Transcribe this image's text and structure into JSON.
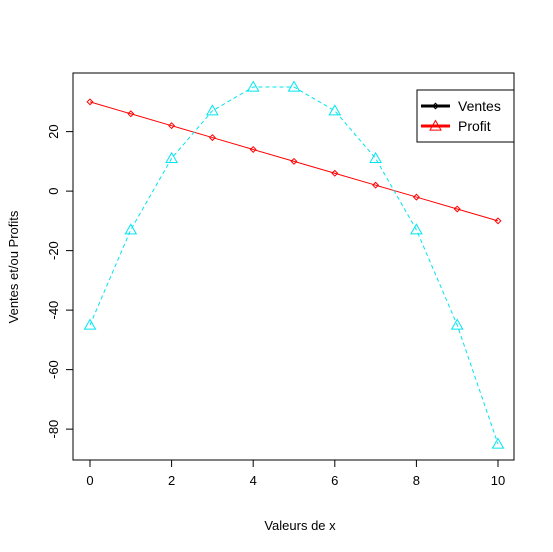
{
  "chart_data": {
    "type": "line",
    "title": "",
    "xlabel": "Valeurs de x",
    "ylabel": "Ventes et/ou Profits",
    "x": [
      0,
      1,
      2,
      3,
      4,
      5,
      6,
      7,
      8,
      9,
      10
    ],
    "xlim": [
      0,
      10
    ],
    "ylim": [
      -85,
      35
    ],
    "xticks": [
      0,
      2,
      4,
      6,
      8,
      10
    ],
    "yticks": [
      -80,
      -60,
      -40,
      -20,
      0,
      20
    ],
    "grid": false,
    "legend_position": "top-right",
    "legend": [
      {
        "label": "Ventes",
        "color": "#000000",
        "marker": "diamond"
      },
      {
        "label": "Profit",
        "color": "#ff0000",
        "marker": "triangle"
      }
    ],
    "series": [
      {
        "name": "Ventes",
        "values": [
          30,
          26,
          22,
          18,
          14,
          10,
          6,
          2,
          -2,
          -6,
          -10
        ],
        "color": "#ff0000",
        "line_style": "solid",
        "marker": "diamond"
      },
      {
        "values": [
          -45,
          -13,
          11,
          27,
          35,
          35,
          27,
          11,
          -13,
          -45,
          -85
        ],
        "color": "#00e5ee",
        "line_style": "dashed",
        "marker": "triangle"
      }
    ]
  }
}
